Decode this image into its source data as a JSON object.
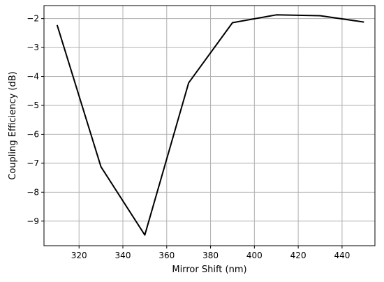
{
  "chart_data": {
    "type": "line",
    "xlabel": "Mirror Shift (nm)",
    "ylabel": "Coupling Efficiency (dB)",
    "xlim": [
      304,
      455
    ],
    "ylim": [
      -9.85,
      -1.55
    ],
    "grid": true,
    "xticks": [
      320,
      340,
      360,
      380,
      400,
      420,
      440
    ],
    "yticks": [
      -2,
      -3,
      -4,
      -5,
      -6,
      -7,
      -8,
      -9
    ],
    "line_color": "#000000",
    "series": [
      {
        "x": [
          310,
          330,
          350,
          370,
          390,
          410,
          430,
          450
        ],
        "values": [
          -2.22,
          -7.12,
          -9.48,
          -4.22,
          -2.14,
          -1.87,
          -1.9,
          -2.12
        ]
      }
    ]
  }
}
